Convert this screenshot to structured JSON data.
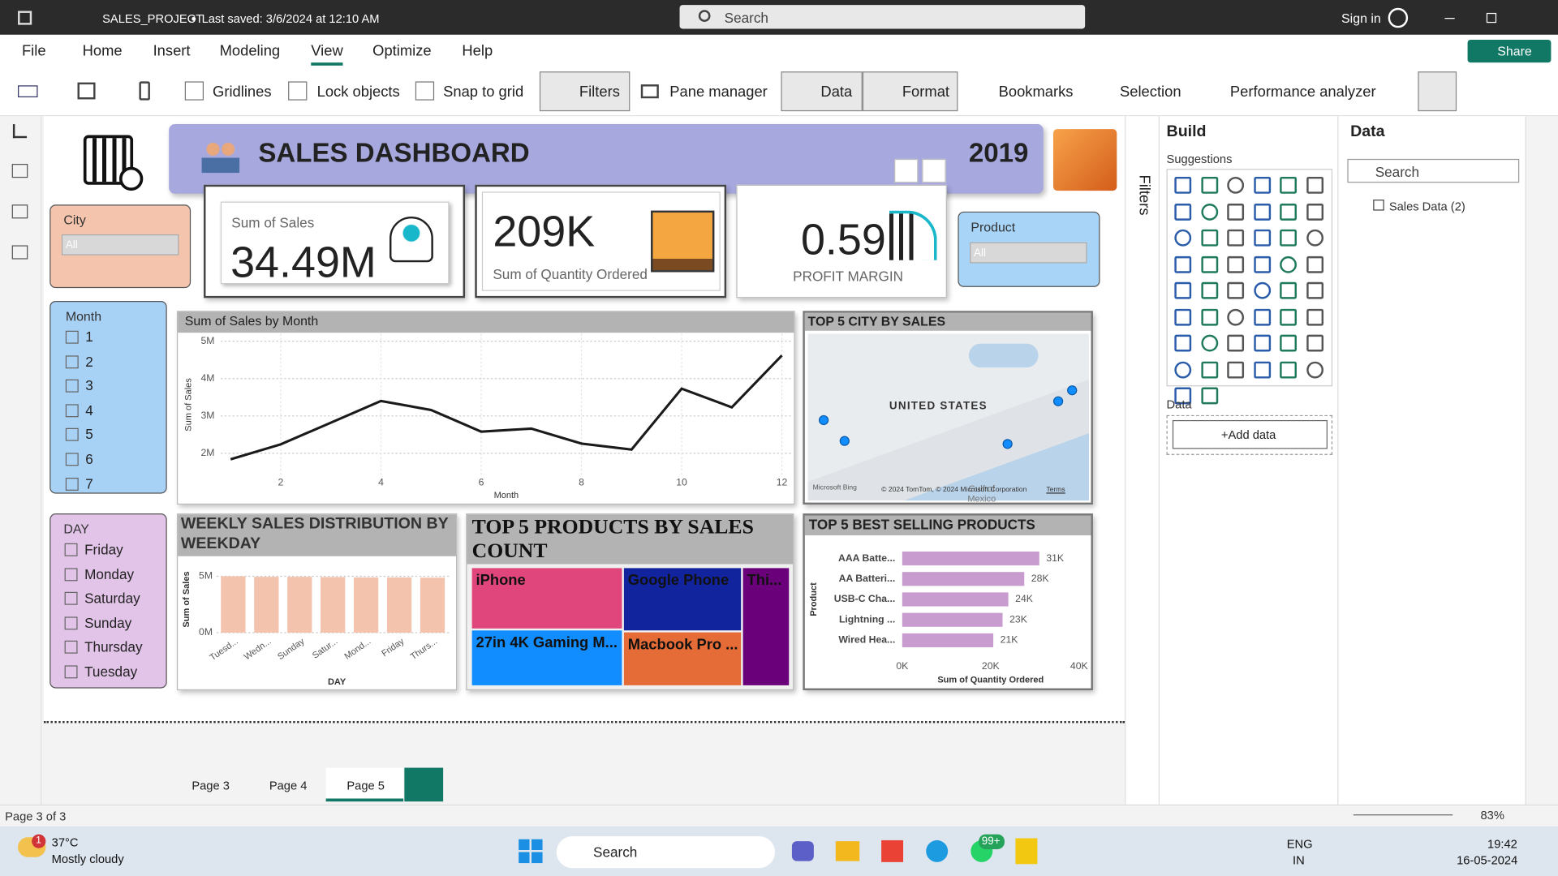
{
  "titlebar": {
    "file_name": "SALES_PROJECT",
    "saved": "Last saved: 3/6/2024 at 12:10 AM",
    "search": "Search",
    "sign_in": "Sign in"
  },
  "menu": {
    "items": [
      "File",
      "Home",
      "Insert",
      "Modeling",
      "View",
      "Optimize",
      "Help"
    ],
    "share": "Share"
  },
  "ribbon": {
    "gridlines": "Gridlines",
    "lock_objects": "Lock objects",
    "snap_to_grid": "Snap to grid",
    "filters": "Filters",
    "pane_manager": "Pane manager",
    "data": "Data",
    "format": "Format",
    "bookmarks": "Bookmarks",
    "selection": "Selection",
    "performance_analyzer": "Performance analyzer"
  },
  "dashboard": {
    "title": "SALES DASHBOARD",
    "year": "2019",
    "cards": [
      {
        "label": "Sum of Sales",
        "value": "34.49M"
      },
      {
        "label": "Sum of Quantity Ordered",
        "value": "209K"
      },
      {
        "label": "PROFIT MARGIN",
        "value": "0.59"
      }
    ],
    "city_slicer": {
      "title": "City",
      "selected": "All"
    },
    "product_slicer": {
      "title": "Product",
      "selected": "All"
    },
    "month_slicer": {
      "title": "Month",
      "items": [
        "1",
        "2",
        "3",
        "4",
        "5",
        "6",
        "7"
      ]
    },
    "day_slicer": {
      "title": "DAY",
      "items": [
        "Friday",
        "Monday",
        "Saturday",
        "Sunday",
        "Thursday",
        "Tuesday"
      ]
    },
    "map": {
      "title": "TOP 5 CITY BY SALES",
      "country": "UNITED STATES",
      "gulf": "Gulf of Mexico",
      "provider": "Microsoft Bing",
      "attribution": "© 2024 TomTom, © 2024 Microsoft Corporation",
      "terms": "Terms"
    }
  },
  "chart_data": [
    {
      "type": "line",
      "title": "Sum of Sales by Month",
      "x": [
        1,
        2,
        3,
        4,
        5,
        6,
        7,
        8,
        9,
        10,
        11,
        12
      ],
      "values": [
        1840000,
        2240000,
        2820000,
        3400000,
        3160000,
        2580000,
        2660000,
        2260000,
        2100000,
        3730000,
        3230000,
        4620000
      ],
      "color": "#1a1a1a",
      "xlim": [
        0.8,
        12.2
      ],
      "xticks": [
        2,
        4,
        6,
        8,
        10,
        12
      ],
      "ylim": [
        1400000,
        5200000
      ],
      "yticks": [
        {
          "value": 2000000,
          "label": "2M"
        },
        {
          "value": 3000000,
          "label": "3M"
        },
        {
          "value": 4000000,
          "label": "4M"
        },
        {
          "value": 5000000,
          "label": "5M"
        }
      ],
      "xlabel": "Month",
      "ylabel": "Sum of Sales",
      "grid": true
    },
    {
      "type": "bar",
      "title": "WEEKLY SALES DISTRIBUTION BY WEEKDAY",
      "categories": [
        "Tuesd...",
        "Wedn...",
        "Sunday",
        "Satur...",
        "Mond...",
        "Friday",
        "Thurs..."
      ],
      "values": [
        5000000,
        4950000,
        4950000,
        4930000,
        4900000,
        4900000,
        4880000
      ],
      "color": "#f4c3ae",
      "ylim": [
        0,
        5900000
      ],
      "yticks": [
        {
          "value": 0,
          "label": "0M"
        },
        {
          "value": 5000000,
          "label": "5M"
        }
      ],
      "xlabel": "DAY",
      "ylabel": "Sum of Sales",
      "grid": true
    },
    {
      "type": "treemap",
      "title": "TOP 5 PRODUCTS BY SALES COUNT",
      "categories": [
        "iPhone",
        "Google Phone",
        "27in 4K Gaming M...",
        "Macbook Pro ...",
        "Thi..."
      ],
      "values": [
        6849,
        5532,
        6244,
        4728,
        4130
      ],
      "colors": [
        "#e0457b",
        "#12239e",
        "#118dff",
        "#e66c37",
        "#6b007b"
      ]
    },
    {
      "type": "bar",
      "orientation": "horizontal",
      "title": "TOP 5 BEST SELLING PRODUCTS",
      "categories": [
        "AAA Batte...",
        "AA Batteri...",
        "USB-C Cha...",
        "Lightning ...",
        "Wired Hea..."
      ],
      "values": [
        31000,
        27600,
        24000,
        22700,
        20600
      ],
      "value_labels": [
        "31K",
        "28K",
        "24K",
        "23K",
        "21K"
      ],
      "color": "#c99ccf",
      "xlim": [
        0,
        40000
      ],
      "xticks": [
        {
          "value": 0,
          "label": "0K"
        },
        {
          "value": 20000,
          "label": "20K"
        },
        {
          "value": 40000,
          "label": "40K"
        }
      ],
      "xlabel": "Sum of Quantity Ordered",
      "ylabel": "Product",
      "grid": false
    }
  ],
  "filters_pane": {
    "title": "Filters"
  },
  "build_pane": {
    "title": "Build",
    "suggestions": "Suggestions",
    "data_label": "Data",
    "add_data": "+Add data"
  },
  "data_pane": {
    "title": "Data",
    "search": "Search",
    "table": "Sales Data (2)"
  },
  "page_tabs": [
    "Page 3",
    "Page 4",
    "Page 5"
  ],
  "status_bar": {
    "page": "Page 3 of 3",
    "zoom": "83%"
  },
  "taskbar": {
    "weather_badge": "1",
    "temperature": "37°C",
    "weather": "Mostly cloudy",
    "search": "Search",
    "notification_badge": "99+",
    "language": "ENG",
    "region": "IN",
    "time": "19:42",
    "date": "16-05-2024"
  }
}
